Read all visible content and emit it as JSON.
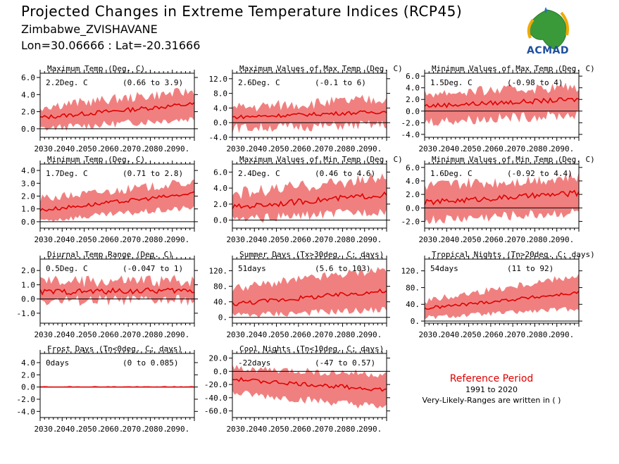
{
  "header": {
    "title": "Projected Changes in Extreme Temperature Indices (RCP45)",
    "location": "Zimbabwe_ZVISHAVANE",
    "coords": "Lon=30.06666 : Lat=-20.31666"
  },
  "logo": {
    "text": "ACMAD"
  },
  "reference": {
    "title": "Reference Period",
    "years": "1991 to 2020",
    "note": "Very-Likely-Ranges are written in ( )"
  },
  "colors": {
    "band": "#f08080",
    "line": "#e00000",
    "zero": "#000000"
  },
  "chart_data": [
    {
      "type": "area",
      "title": "Maximum Temp (Deg. C)",
      "mean_label": "2.2Deg. C",
      "range_label": "(0.66 to 3.9)",
      "xlim": [
        2030,
        2100
      ],
      "ylim": [
        -1.0,
        6.5
      ],
      "x_ticks": [
        "2030.",
        "2040.",
        "2050.",
        "2060.",
        "2070.",
        "2080.",
        "2090."
      ],
      "y_ticks": [
        {
          "v": 0,
          "l": "0.0"
        },
        {
          "v": 2,
          "l": "2.0"
        },
        {
          "v": 4,
          "l": "4.0"
        },
        {
          "v": 6,
          "l": "6.0"
        }
      ],
      "mean": {
        "start": 1.3,
        "end": 2.9,
        "noise": 0.25
      },
      "lower": {
        "start": 0.0,
        "end": 1.2,
        "noise": 0.45
      },
      "upper": {
        "start": 2.6,
        "end": 4.4,
        "noise": 0.6
      }
    },
    {
      "type": "area",
      "title": "Maximum Values of Max Temp (Deg. C)",
      "mean_label": "2.6Deg. C",
      "range_label": "(-0.1 to 6)",
      "xlim": [
        2030,
        2100
      ],
      "ylim": [
        -4.0,
        13.5
      ],
      "x_ticks": [
        "2030.",
        "2040.",
        "2050.",
        "2060.",
        "2070.",
        "2080.",
        "2090."
      ],
      "y_ticks": [
        {
          "v": -4,
          "l": "-4.0"
        },
        {
          "v": 0,
          "l": "0.0"
        },
        {
          "v": 4,
          "l": "4.0"
        },
        {
          "v": 8,
          "l": "8.0"
        },
        {
          "v": 12,
          "l": "12.0"
        }
      ],
      "mean": {
        "start": 1.5,
        "end": 3.0,
        "noise": 0.5
      },
      "lower": {
        "start": -1.5,
        "end": -0.5,
        "noise": 1.4
      },
      "upper": {
        "start": 4.0,
        "end": 6.5,
        "noise": 1.6
      }
    },
    {
      "type": "area",
      "title": "Minimum Values of Max Temp (Deg. C)",
      "mean_label": "1.5Deg. C",
      "range_label": "(-0.98 to 4)",
      "xlim": [
        2030,
        2100
      ],
      "ylim": [
        -4.5,
        6.5
      ],
      "x_ticks": [
        "2030.",
        "2040.",
        "2050.",
        "2060.",
        "2070.",
        "2080.",
        "2090."
      ],
      "y_ticks": [
        {
          "v": -4,
          "l": "-4.0"
        },
        {
          "v": -2,
          "l": "-2.0"
        },
        {
          "v": 0,
          "l": "0.0"
        },
        {
          "v": 2,
          "l": "2.0"
        },
        {
          "v": 4,
          "l": "4.0"
        },
        {
          "v": 6,
          "l": "6.0"
        }
      ],
      "mean": {
        "start": 0.9,
        "end": 2.0,
        "noise": 0.4
      },
      "lower": {
        "start": -1.8,
        "end": -0.6,
        "noise": 0.9
      },
      "upper": {
        "start": 3.0,
        "end": 4.2,
        "noise": 0.9
      }
    },
    {
      "type": "area",
      "title": "Minimum Temp (Deg. C)",
      "mean_label": "1.7Deg. C",
      "range_label": "(0.71 to 2.8)",
      "xlim": [
        2030,
        2100
      ],
      "ylim": [
        -0.5,
        4.5
      ],
      "x_ticks": [
        "2030.",
        "2040.",
        "2050.",
        "2060.",
        "2070.",
        "2080.",
        "2090."
      ],
      "y_ticks": [
        {
          "v": 0,
          "l": "0.0"
        },
        {
          "v": 1,
          "l": "1.0"
        },
        {
          "v": 2,
          "l": "2.0"
        },
        {
          "v": 3,
          "l": "3.0"
        },
        {
          "v": 4,
          "l": "4.0"
        }
      ],
      "mean": {
        "start": 0.9,
        "end": 2.2,
        "noise": 0.15
      },
      "lower": {
        "start": 0.1,
        "end": 1.1,
        "noise": 0.25
      },
      "upper": {
        "start": 1.8,
        "end": 3.1,
        "noise": 0.35
      }
    },
    {
      "type": "area",
      "title": "Maximum Values of Min Temp (Deg. C)",
      "mean_label": "2.4Deg. C",
      "range_label": "(0.46 to 4.6)",
      "xlim": [
        2030,
        2100
      ],
      "ylim": [
        -1.0,
        7.0
      ],
      "x_ticks": [
        "2030.",
        "2040.",
        "2050.",
        "2060.",
        "2070.",
        "2080.",
        "2090."
      ],
      "y_ticks": [
        {
          "v": 0,
          "l": "0.0"
        },
        {
          "v": 2,
          "l": "2.0"
        },
        {
          "v": 4,
          "l": "4.0"
        },
        {
          "v": 6,
          "l": "6.0"
        }
      ],
      "mean": {
        "start": 1.6,
        "end": 3.2,
        "noise": 0.35
      },
      "lower": {
        "start": 0.0,
        "end": 1.2,
        "noise": 0.6
      },
      "upper": {
        "start": 3.3,
        "end": 5.3,
        "noise": 0.8
      }
    },
    {
      "type": "area",
      "title": "Minimum Values of Min Temp (Deg. C)",
      "mean_label": "1.6Deg. C",
      "range_label": "(-0.92 to 4.4)",
      "xlim": [
        2030,
        2100
      ],
      "ylim": [
        -3.0,
        6.5
      ],
      "x_ticks": [
        "2030.",
        "2040.",
        "2050.",
        "2060.",
        "2070.",
        "2080.",
        "2090."
      ],
      "y_ticks": [
        {
          "v": -2,
          "l": "-2.0"
        },
        {
          "v": 0,
          "l": "0.0"
        },
        {
          "v": 2,
          "l": "2.0"
        },
        {
          "v": 4,
          "l": "4.0"
        },
        {
          "v": 6,
          "l": "6.0"
        }
      ],
      "mean": {
        "start": 0.8,
        "end": 2.2,
        "noise": 0.4
      },
      "lower": {
        "start": -1.8,
        "end": -0.6,
        "noise": 0.8
      },
      "upper": {
        "start": 3.2,
        "end": 4.6,
        "noise": 0.9
      }
    },
    {
      "type": "area",
      "title": "Diurnal Temp Range (Deg. C)",
      "mean_label": "0.5Deg. C",
      "range_label": "(-0.047 to 1)",
      "xlim": [
        2030,
        2100
      ],
      "ylim": [
        -1.7,
        2.8
      ],
      "x_ticks": [
        "2030.",
        "2040.",
        "2050.",
        "2060.",
        "2070.",
        "2080.",
        "2090."
      ],
      "y_ticks": [
        {
          "v": -1,
          "l": "-1.0"
        },
        {
          "v": 0,
          "l": "0.0"
        },
        {
          "v": 1,
          "l": "1.0"
        },
        {
          "v": 2,
          "l": "2.0"
        }
      ],
      "mean": {
        "start": 0.5,
        "end": 0.6,
        "noise": 0.2
      },
      "lower": {
        "start": -0.1,
        "end": -0.1,
        "noise": 0.4
      },
      "upper": {
        "start": 1.2,
        "end": 1.3,
        "noise": 0.45
      }
    },
    {
      "type": "area",
      "title": "Summer Days (Tx>30deg. C; days)",
      "mean_label": "51days",
      "range_label": "(5.6 to 103)",
      "xlim": [
        2030,
        2100
      ],
      "ylim": [
        -15,
        150
      ],
      "x_ticks": [
        "2030.",
        "2040.",
        "2050.",
        "2060.",
        "2070.",
        "2080.",
        "2090."
      ],
      "y_ticks": [
        {
          "v": 0,
          "l": "0."
        },
        {
          "v": 40,
          "l": "40."
        },
        {
          "v": 80,
          "l": "80."
        },
        {
          "v": 120,
          "l": "120."
        }
      ],
      "mean": {
        "start": 35,
        "end": 68,
        "noise": 6
      },
      "lower": {
        "start": 5,
        "end": 20,
        "noise": 9
      },
      "upper": {
        "start": 75,
        "end": 125,
        "noise": 12
      }
    },
    {
      "type": "area",
      "title": "Tropical Nights (Tn>20deg. C; days)",
      "mean_label": "54days",
      "range_label": "(11 to 92)",
      "xlim": [
        2030,
        2100
      ],
      "ylim": [
        -5,
        148
      ],
      "x_ticks": [
        "2030.",
        "2040.",
        "2050.",
        "2060.",
        "2070.",
        "2080.",
        "2090."
      ],
      "y_ticks": [
        {
          "v": 0,
          "l": "0."
        },
        {
          "v": 40,
          "l": "40."
        },
        {
          "v": 80,
          "l": "80."
        },
        {
          "v": 120,
          "l": "120."
        }
      ],
      "mean": {
        "start": 30,
        "end": 68,
        "noise": 4
      },
      "lower": {
        "start": 8,
        "end": 30,
        "noise": 6
      },
      "upper": {
        "start": 48,
        "end": 110,
        "noise": 9
      }
    },
    {
      "type": "area",
      "title": "Frost Days (Tn<0deg. C; days)",
      "mean_label": "0days",
      "range_label": "(0 to 0.085)",
      "xlim": [
        2030,
        2100
      ],
      "ylim": [
        -5.0,
        5.5
      ],
      "x_ticks": [
        "2030.",
        "2040.",
        "2050.",
        "2060.",
        "2070.",
        "2080.",
        "2090."
      ],
      "y_ticks": [
        {
          "v": -4,
          "l": "-4.0"
        },
        {
          "v": -2,
          "l": "-2.0"
        },
        {
          "v": 0,
          "l": "0.0"
        },
        {
          "v": 2,
          "l": "2.0"
        },
        {
          "v": 4,
          "l": "4.0"
        }
      ],
      "mean": {
        "start": 0.0,
        "end": 0.0,
        "noise": 0.0
      },
      "lower": {
        "start": 0.0,
        "end": 0.0,
        "noise": 0.0
      },
      "upper": {
        "start": 0.1,
        "end": 0.1,
        "noise": 0.12
      }
    },
    {
      "type": "area",
      "title": "Cool Nights (Tn<10deg. C; days)",
      "mean_label": "-22days",
      "range_label": "(-47 to 0.57)",
      "xlim": [
        2030,
        2100
      ],
      "ylim": [
        -70,
        27
      ],
      "x_ticks": [
        "2030.",
        "2040.",
        "2050.",
        "2060.",
        "2070.",
        "2080.",
        "2090."
      ],
      "y_ticks": [
        {
          "v": -60,
          "l": "-60.0"
        },
        {
          "v": -40,
          "l": "-40.0"
        },
        {
          "v": -20,
          "l": "-20.0"
        },
        {
          "v": 0,
          "l": "0.0"
        },
        {
          "v": 20,
          "l": "20.0"
        }
      ],
      "mean": {
        "start": -12,
        "end": -28,
        "noise": 3
      },
      "lower": {
        "start": -33,
        "end": -55,
        "noise": 6
      },
      "upper": {
        "start": 5,
        "end": -5,
        "noise": 6
      }
    }
  ]
}
